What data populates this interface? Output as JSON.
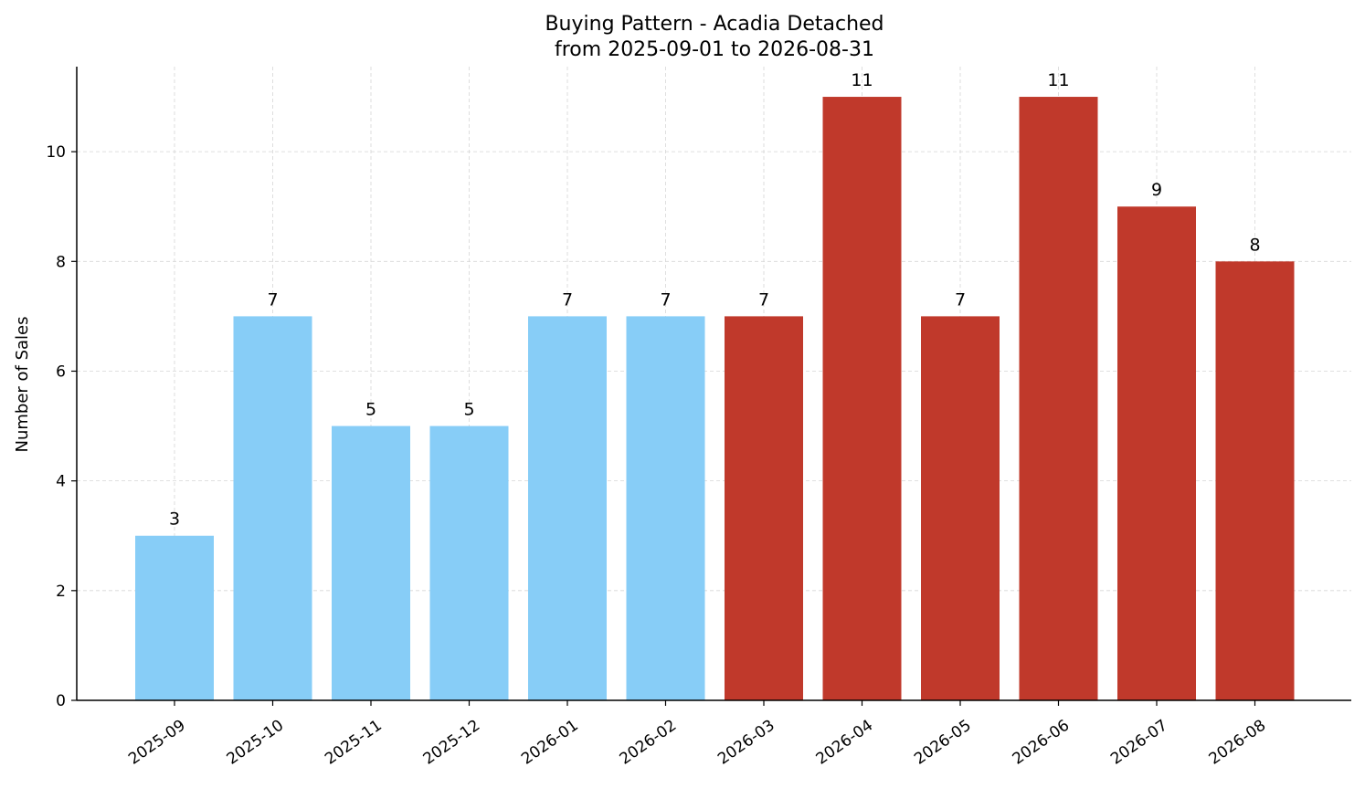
{
  "chart_data": {
    "type": "bar",
    "title": "Buying Pattern - Acadia Detached",
    "subtitle": "from 2025-09-01 to 2026-08-31",
    "xlabel": "",
    "ylabel": "Number of Sales",
    "categories": [
      "2025-09",
      "2025-10",
      "2025-11",
      "2025-12",
      "2026-01",
      "2026-02",
      "2026-03",
      "2026-04",
      "2026-05",
      "2026-06",
      "2026-07",
      "2026-08"
    ],
    "values": [
      3,
      7,
      5,
      5,
      7,
      7,
      7,
      11,
      7,
      11,
      9,
      8
    ],
    "bar_colors": [
      "#87cdf7",
      "#87cdf7",
      "#87cdf7",
      "#87cdf7",
      "#87cdf7",
      "#87cdf7",
      "#c0392b",
      "#c0392b",
      "#c0392b",
      "#c0392b",
      "#c0392b",
      "#c0392b"
    ],
    "ylim": [
      0,
      11.55
    ],
    "yticks": [
      0,
      2,
      4,
      6,
      8,
      10
    ],
    "grid": true,
    "data_labels": true
  }
}
